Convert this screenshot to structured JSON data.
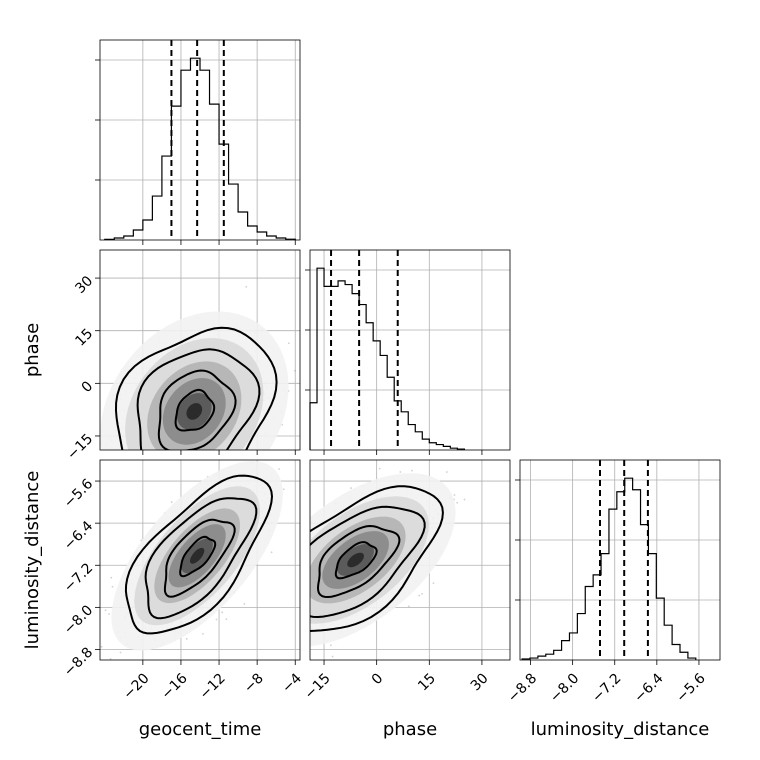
{
  "chart_data": {
    "type": "corner",
    "parameters": [
      "geocent_time",
      "phase",
      "luminosity_distance"
    ],
    "axis_labels": {
      "geocent_time": "geocent_time",
      "phase": "phase",
      "luminosity_distance": "luminosity_distance"
    },
    "ranges": {
      "geocent_time": [
        -24.5,
        -3.5
      ],
      "phase": [
        -19,
        38
      ],
      "luminosity_distance": [
        -9.0,
        -5.2
      ]
    },
    "ticks": {
      "geocent_time": [
        -20,
        -16,
        -12,
        -8,
        -4
      ],
      "phase": [
        -15,
        0,
        15,
        30
      ],
      "luminosity_distance": [
        -8.8,
        -8.0,
        -7.2,
        -6.4,
        -5.6
      ]
    },
    "tick_labels": {
      "geocent_time": [
        "−20",
        "−16",
        "−12",
        "−8",
        "−4"
      ],
      "phase": [
        "−15",
        "0",
        "15",
        "30"
      ],
      "luminosity_distance": [
        "−8.8",
        "−8.0",
        "−7.2",
        "−6.4",
        "−5.6"
      ]
    },
    "quantiles": {
      "geocent_time": [
        -17.0,
        -14.3,
        -11.5
      ],
      "phase": [
        -13,
        -5,
        6
      ],
      "luminosity_distance": [
        -7.48,
        -7.02,
        -6.57
      ]
    },
    "histograms": {
      "geocent_time": {
        "edges": [
          -24,
          -23,
          -22,
          -21,
          -20,
          -19,
          -18,
          -17,
          -16,
          -15,
          -14,
          -13,
          -12,
          -11,
          -10,
          -9,
          -8,
          -7,
          -6,
          -5,
          -4
        ],
        "counts": [
          0.3,
          1,
          2,
          5,
          10,
          22,
          42,
          67,
          85,
          91,
          85,
          68,
          48,
          28,
          14,
          7,
          4,
          2,
          1,
          0.4
        ]
      },
      "phase": {
        "edges": [
          -19,
          -17,
          -15,
          -13,
          -11,
          -9,
          -7,
          -5,
          -3,
          -1,
          1,
          3,
          5,
          7,
          9,
          11,
          13,
          15,
          17,
          19,
          21,
          23,
          25
        ],
        "counts": [
          26,
          100,
          90,
          90,
          93,
          91,
          86,
          80,
          70,
          60,
          52,
          40,
          27,
          21,
          14,
          10,
          6,
          4,
          3,
          2,
          1,
          0.5
        ]
      },
      "luminosity_distance": {
        "edges": [
          -8.96,
          -8.81,
          -8.66,
          -8.51,
          -8.36,
          -8.21,
          -8.06,
          -7.91,
          -7.76,
          -7.61,
          -7.46,
          -7.31,
          -7.16,
          -7.01,
          -6.86,
          -6.71,
          -6.56,
          -6.41,
          -6.26,
          -6.11,
          -5.96,
          -5.81,
          -5.66
        ],
        "counts": [
          0.5,
          1,
          2,
          3,
          5,
          10,
          14,
          24,
          38,
          44,
          55,
          78,
          87,
          94,
          88,
          70,
          55,
          32,
          18,
          8,
          4,
          1
        ]
      }
    },
    "joint": {
      "phase_vs_geocent_time": {
        "x": "geocent_time",
        "y": "phase",
        "center": [
          -14.6,
          -8
        ],
        "sd": [
          3.3,
          9.5
        ],
        "corr": 0.25
      },
      "luminosity_distance_vs_geocent_time": {
        "x": "geocent_time",
        "y": "luminosity_distance",
        "center": [
          -14.3,
          -7.02
        ],
        "sd": [
          3.0,
          0.6
        ],
        "corr": 0.65
      },
      "luminosity_distance_vs_phase": {
        "x": "phase",
        "y": "luminosity_distance",
        "center": [
          -6,
          -7.1
        ],
        "sd": [
          9.5,
          0.55
        ],
        "corr": 0.55
      }
    }
  }
}
